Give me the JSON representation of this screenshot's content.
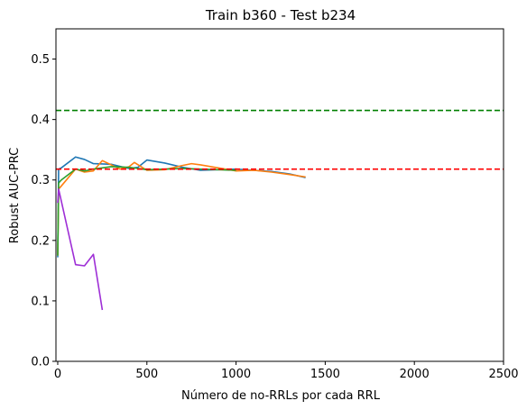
{
  "chart_data": {
    "type": "line",
    "title": "Train b360 - Test b234",
    "xlabel": "Número de no-RRLs por cada RRL",
    "ylabel": "Robust AUC-PRC",
    "xlim": [
      -10,
      2500
    ],
    "ylim": [
      0.0,
      0.55
    ],
    "xticks": [
      0,
      500,
      1000,
      1500,
      2000,
      2500
    ],
    "xtick_labels": [
      "0",
      "500",
      "1000",
      "1500",
      "2000",
      "2500"
    ],
    "yticks": [
      0.0,
      0.1,
      0.2,
      0.3,
      0.4,
      0.5
    ],
    "ytick_labels": [
      "0.0",
      "0.1",
      "0.2",
      "0.3",
      "0.4",
      "0.5"
    ],
    "grid": false,
    "legend": "none",
    "series": [
      {
        "color": "#1f77b4",
        "style": "solid",
        "x": [
          0,
          5,
          20,
          100,
          150,
          200,
          300,
          400,
          450,
          500,
          600,
          700,
          800,
          900,
          1000,
          1100,
          1200,
          1300,
          1390
        ],
        "y": [
          0.172,
          0.318,
          0.32,
          0.338,
          0.334,
          0.327,
          0.326,
          0.319,
          0.321,
          0.333,
          0.328,
          0.321,
          0.316,
          0.317,
          0.318,
          0.316,
          0.314,
          0.31,
          0.304
        ]
      },
      {
        "color": "#ff7f0e",
        "style": "solid",
        "x": [
          0,
          5,
          20,
          100,
          150,
          200,
          250,
          300,
          350,
          400,
          430,
          500,
          600,
          700,
          750,
          800,
          900,
          1000,
          1100,
          1200,
          1300,
          1390
        ],
        "y": [
          0.175,
          0.285,
          0.29,
          0.318,
          0.313,
          0.315,
          0.332,
          0.325,
          0.318,
          0.322,
          0.329,
          0.316,
          0.317,
          0.324,
          0.327,
          0.325,
          0.32,
          0.315,
          0.316,
          0.313,
          0.309,
          0.305
        ]
      },
      {
        "color": "#2ca02c",
        "style": "solid",
        "x": [
          0,
          5,
          20,
          100,
          150,
          200,
          300,
          400,
          500,
          600,
          700,
          800,
          900,
          1000
        ],
        "y": [
          0.175,
          0.295,
          0.3,
          0.318,
          0.315,
          0.318,
          0.322,
          0.321,
          0.317,
          0.318,
          0.319,
          0.318,
          0.317,
          0.316
        ]
      },
      {
        "color": "#9e2fd6",
        "style": "solid",
        "x": [
          0,
          5,
          100,
          150,
          200,
          250
        ],
        "y": [
          0.262,
          0.285,
          0.16,
          0.158,
          0.177,
          0.085
        ]
      },
      {
        "color": "#008000",
        "style": "dashed",
        "x": [
          -10,
          2500
        ],
        "y": [
          0.415,
          0.415
        ]
      },
      {
        "color": "#ff0000",
        "style": "dashed",
        "x": [
          -10,
          2500
        ],
        "y": [
          0.318,
          0.318
        ]
      }
    ]
  }
}
